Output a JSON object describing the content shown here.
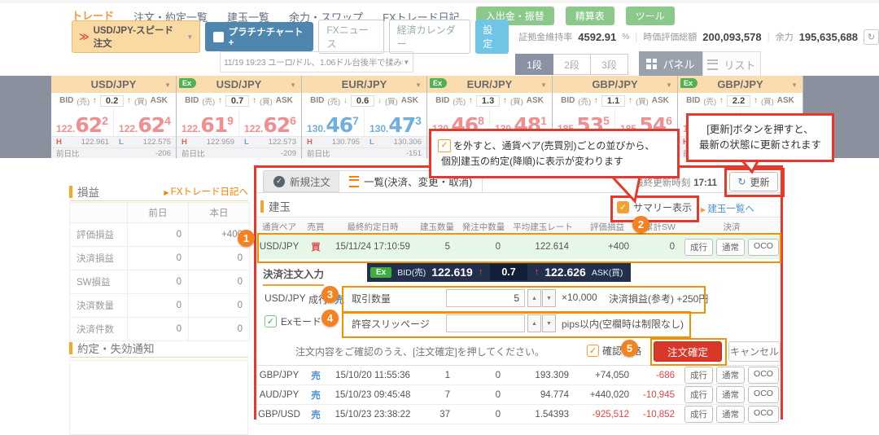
{
  "top_nav": {
    "items": [
      {
        "label": "トレード",
        "active": true
      },
      {
        "label": "注文・約定一覧",
        "active": false
      },
      {
        "label": "建玉一覧",
        "active": false
      },
      {
        "label": "余力・スワップ",
        "active": false
      },
      {
        "label": "FXトレード日記",
        "active": false
      }
    ],
    "green_buttons": [
      "入出金・振替",
      "精算表",
      "ツール"
    ]
  },
  "toolbar": {
    "speed_order": "USD/JPY-スピード注文",
    "platinum_chart": "プラチナチャート+",
    "fx_news": "FXニュース",
    "calendar": "経済カレンダー",
    "settings": "設定",
    "margin_label": "証拠金維持率",
    "margin_value": "4592.91",
    "margin_unit": "%",
    "valuation_label": "時価評価総額",
    "valuation_value": "200,093,578",
    "power_label": "余力",
    "power_value": "195,635,688"
  },
  "news_bar": {
    "text": "11/19 19:23 ユーロ/ドル、1.06ドル台後半で揉み合いに=19日欧州外為"
  },
  "layout_switch": {
    "rows": [
      "1段",
      "2段",
      "3段"
    ],
    "active_row": "1段",
    "panel_label": "パネル",
    "list_label": "リスト"
  },
  "rate_labels": {
    "bid": "BID",
    "bid_side": "(売)",
    "ask": "ASK",
    "ask_side": "(買)",
    "high": "H",
    "low": "L",
    "prev": "前日比",
    "ex": "Ex"
  },
  "rate_panels": [
    {
      "ex": false,
      "pair": "USD/JPY",
      "trend": "up",
      "spread": "0.2",
      "bid": "122.622",
      "ask": "122.624",
      "high": "122.961",
      "low": "122.575",
      "prev": "-206"
    },
    {
      "ex": true,
      "pair": "USD/JPY",
      "trend": "up",
      "spread": "0.7",
      "bid": "122.619",
      "ask": "122.626",
      "high": "122.959",
      "low": "122.573",
      "prev": "-209"
    },
    {
      "ex": false,
      "pair": "EUR/JPY",
      "trend": "down",
      "spread": "0.6",
      "bid": "130.467",
      "ask": "130.473",
      "high": "130.795",
      "low": "130.306",
      "prev": "-151"
    },
    {
      "ex": true,
      "pair": "EUR/JPY",
      "trend": "up",
      "spread": "1.3",
      "bid": "130.468",
      "ask": "130.481",
      "high": "",
      "low": "",
      "prev": ""
    },
    {
      "ex": false,
      "pair": "GBP/JPY",
      "trend": "up",
      "spread": "1.1",
      "bid": "185.535",
      "ask": "185.546",
      "high": "",
      "low": "",
      "prev": ""
    },
    {
      "ex": true,
      "pair": "GBP/JPY",
      "trend": "up",
      "spread": "2.2",
      "bid": "185.528",
      "ask": "185.550",
      "high": "",
      "low": "",
      "prev": ""
    }
  ],
  "sidebar": {
    "pnl": {
      "title": "損益",
      "link": "FXトレード日記へ",
      "col_prev": "前日",
      "col_today": "本日",
      "rows": [
        [
          "評価損益",
          "0",
          "+400"
        ],
        [
          "決済損益",
          "0",
          "0"
        ],
        [
          "SW損益",
          "0",
          "0"
        ],
        [
          "決済数量",
          "0",
          "0"
        ],
        [
          "決済件数",
          "0",
          "0"
        ]
      ]
    },
    "notice_title": "約定・失効通知"
  },
  "main": {
    "tabs": [
      {
        "label": "新規注文",
        "active": false
      },
      {
        "label": "一覧(決済、変更・取消)",
        "active": true
      }
    ],
    "last_update_label": "最終更新時刻",
    "last_update_time": "17:11",
    "refresh_button": "更新",
    "section_title": "建玉",
    "summary_checkbox": "サマリー表示",
    "positions_link": "建玉一覧へ",
    "table": {
      "headers": [
        "通貨ペア",
        "売買",
        "最終約定日時",
        "建玉数量",
        "発注中数量",
        "平均建玉レート",
        "評価損益",
        "累計SW",
        "決済"
      ],
      "action_buttons": [
        "成行",
        "通常",
        "OCO"
      ],
      "highlight_row": {
        "pair": "USD/JPY",
        "side": "買",
        "datetime": "15/11/24 17:10:59",
        "qty": "5",
        "pending": "0",
        "avg_rate": "122.614",
        "pnl": "+400",
        "swap": "0"
      },
      "rows": [
        {
          "pair": "GBP/JPY",
          "side": "売",
          "datetime": "15/10/20 11:55:36",
          "qty": "1",
          "pending": "0",
          "avg_rate": "193.309",
          "pnl": "+74,050",
          "swap": "-686"
        },
        {
          "pair": "AUD/JPY",
          "side": "売",
          "datetime": "15/10/23 09:45:48",
          "qty": "7",
          "pending": "0",
          "avg_rate": "94.774",
          "pnl": "+440,020",
          "swap": "-10,945"
        },
        {
          "pair": "GBP/USD",
          "side": "売",
          "datetime": "15/10/23 23:38:22",
          "qty": "37",
          "pending": "0",
          "avg_rate": "1.54393",
          "pnl": "-925,512",
          "swap": "-10,852"
        }
      ]
    },
    "order_form": {
      "section_title": "決済注文入力",
      "ex_badge": "Ex",
      "bid_label": "BID(売)",
      "bid_value": "122.619",
      "spread": "0.7",
      "ask_value": "122.626",
      "ask_label": "ASK(買)",
      "pair": "USD/JPY",
      "order_type": "成行",
      "side": "売",
      "qty_label": "取引数量",
      "qty_value": "5",
      "qty_unit": "×10,000",
      "qty_pnl": "決済損益(参考) +250円",
      "ex_mode": "Exモード",
      "slippage_label": "許容スリッページ",
      "slippage_value": "",
      "slippage_note": "pips以内(空欄時は制限なし)",
      "confirm_note": "注文内容をご確認のうえ、[注文確定]を押してください。",
      "confirm_skip": "確認省略",
      "submit": "注文確定",
      "cancel": "キャンセル"
    }
  },
  "callouts": {
    "summary": {
      "line1": "を外すと、通貨ペア(売買別)ごとの並びから、",
      "line2": "個別建玉の約定(降順)に表示が変わります"
    },
    "refresh": {
      "line1": "[更新]ボタンを押すと、",
      "line2": "最新の状態に更新されます"
    }
  },
  "badges": [
    "1",
    "2",
    "3",
    "4",
    "5"
  ],
  "colors": {
    "annotation_red": "#e6392b",
    "annotation_orange": "#f29100",
    "badge_orange": "#f48220",
    "accent_orange": "#f5a623",
    "green_button": "#8bc98b",
    "price_up": "#ef8f8f",
    "price_down": "#70aede",
    "highlight_row": "#e7f7e7",
    "navy_bar": "#22304d",
    "submit_red": "#d8382a"
  }
}
